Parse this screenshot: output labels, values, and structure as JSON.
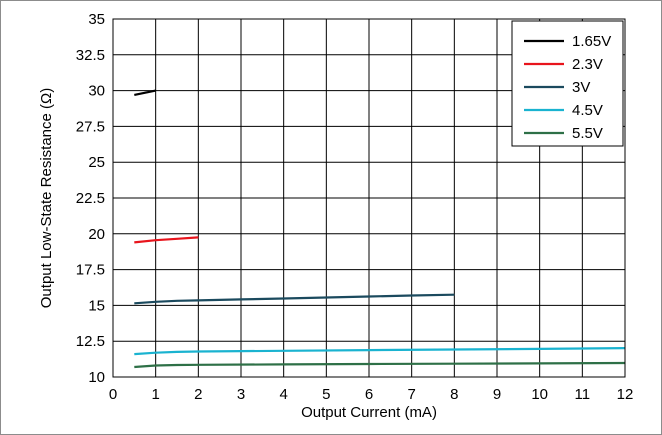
{
  "chart_data": {
    "type": "line",
    "xlabel": "Output Current (mA)",
    "ylabel": "Output Low-State Resistance (Ω)",
    "xlim": [
      0,
      12
    ],
    "ylim": [
      10,
      35
    ],
    "xticks": [
      "0",
      "1",
      "2",
      "3",
      "4",
      "5",
      "6",
      "7",
      "8",
      "9",
      "10",
      "11",
      "12"
    ],
    "yticks": [
      "10",
      "12.5",
      "15",
      "17.5",
      "20",
      "22.5",
      "25",
      "27.5",
      "30",
      "32.5",
      "35"
    ],
    "grid": true,
    "legend_position": "top-right",
    "series": [
      {
        "name": "1.65V",
        "color": "#000000",
        "x": [
          0.5,
          1
        ],
        "y": [
          29.7,
          30.0
        ]
      },
      {
        "name": "2.3V",
        "color": "#e8141c",
        "x": [
          0.5,
          1,
          1.5,
          2
        ],
        "y": [
          19.4,
          19.55,
          19.65,
          19.75
        ]
      },
      {
        "name": "3V",
        "color": "#1b4a5e",
        "x": [
          0.5,
          1,
          1.5,
          2,
          3,
          4,
          5,
          6,
          7,
          8
        ],
        "y": [
          15.15,
          15.25,
          15.32,
          15.35,
          15.42,
          15.48,
          15.55,
          15.62,
          15.69,
          15.75
        ]
      },
      {
        "name": "4.5V",
        "color": "#1ab3d0",
        "x": [
          0.5,
          1,
          1.5,
          2,
          4,
          6,
          8,
          10,
          12
        ],
        "y": [
          11.6,
          11.7,
          11.75,
          11.78,
          11.83,
          11.88,
          11.92,
          11.96,
          12.02
        ]
      },
      {
        "name": "5.5V",
        "color": "#2e7047",
        "x": [
          0.5,
          1,
          1.5,
          2,
          4,
          6,
          8,
          10,
          12
        ],
        "y": [
          10.7,
          10.8,
          10.84,
          10.85,
          10.88,
          10.91,
          10.93,
          10.95,
          10.98
        ]
      }
    ]
  }
}
